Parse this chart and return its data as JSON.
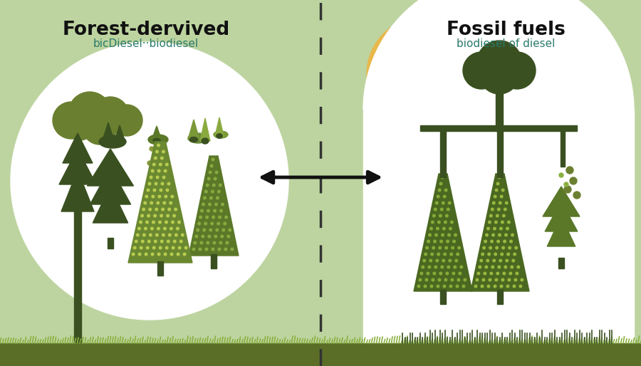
{
  "bg_color": "#bdd4a0",
  "ground_color_dark": "#5a6e28",
  "ground_color_light": "#7a9a3a",
  "white": "#ffffff",
  "dark_green": "#3a5020",
  "medium_green": "#5a7828",
  "light_green_tree": "#8ab040",
  "olive_green": "#6a8030",
  "cloud_green": "#6a8030",
  "sun_color": "#e8b84b",
  "teal_text": "#2a7a6a",
  "title_color": "#111111",
  "arrow_color": "#111111",
  "dashed_line_color": "#333333",
  "left_title": "Forest-dervived",
  "left_subtitle": "bicDiesel̲̲biodiesel",
  "right_title": "Fossil fuels",
  "right_subtitle": "biodiesel of diesel",
  "figsize": [
    9.0,
    5.14
  ],
  "dpi": 100
}
